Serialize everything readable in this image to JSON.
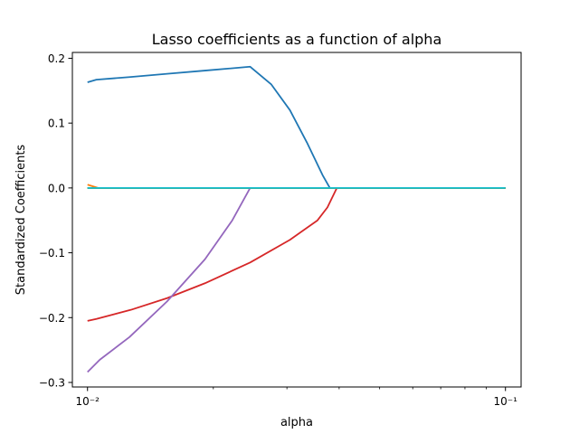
{
  "chart_data": {
    "type": "line",
    "title": "Lasso coefficients as a function of alpha",
    "xlabel": "alpha",
    "ylabel": "Standardized Coefficients",
    "xscale": "log",
    "xlim": [
      0.0092,
      0.109
    ],
    "ylim": [
      -0.307,
      0.209
    ],
    "grid": false,
    "legend": "none",
    "x_ticks": [
      {
        "value": 0.01,
        "label": "10⁻²"
      },
      {
        "value": 0.1,
        "label": "10⁻¹"
      }
    ],
    "y_ticks": [
      {
        "value": 0.2,
        "label": "0.2"
      },
      {
        "value": 0.1,
        "label": "0.1"
      },
      {
        "value": 0.0,
        "label": "0.0"
      },
      {
        "value": -0.1,
        "label": "−0.1"
      },
      {
        "value": -0.2,
        "label": "−0.2"
      },
      {
        "value": -0.3,
        "label": "−0.3"
      }
    ],
    "series": [
      {
        "color": "#1f77b4",
        "points": [
          [
            0.01,
            0.163
          ],
          [
            0.0105,
            0.167
          ],
          [
            0.0126,
            0.171
          ],
          [
            0.0155,
            0.176
          ],
          [
            0.0191,
            0.181
          ],
          [
            0.0245,
            0.187
          ],
          [
            0.0275,
            0.16
          ],
          [
            0.0305,
            0.12
          ],
          [
            0.0335,
            0.07
          ],
          [
            0.0365,
            0.02
          ],
          [
            0.038,
            0.0
          ],
          [
            0.1,
            0.0
          ]
        ]
      },
      {
        "color": "#ff7f0e",
        "points": [
          [
            0.01,
            0.005
          ],
          [
            0.0106,
            0.0
          ],
          [
            0.1,
            0.0
          ]
        ]
      },
      {
        "color": "#d62728",
        "points": [
          [
            0.01,
            -0.205
          ],
          [
            0.0105,
            -0.202
          ],
          [
            0.0127,
            -0.188
          ],
          [
            0.0155,
            -0.17
          ],
          [
            0.0191,
            -0.147
          ],
          [
            0.0245,
            -0.115
          ],
          [
            0.0305,
            -0.08
          ],
          [
            0.0355,
            -0.05
          ],
          [
            0.0375,
            -0.03
          ],
          [
            0.0395,
            0.0
          ],
          [
            0.1,
            0.0
          ]
        ]
      },
      {
        "color": "#9467bd",
        "points": [
          [
            0.01,
            -0.284
          ],
          [
            0.0107,
            -0.265
          ],
          [
            0.0126,
            -0.23
          ],
          [
            0.0155,
            -0.175
          ],
          [
            0.0191,
            -0.11
          ],
          [
            0.0222,
            -0.05
          ],
          [
            0.0245,
            0.0
          ],
          [
            0.1,
            0.0
          ]
        ]
      },
      {
        "color": "#8c564b",
        "points": [
          [
            0.01,
            0.0
          ],
          [
            0.1,
            0.0
          ]
        ]
      },
      {
        "color": "#e377c2",
        "points": [
          [
            0.01,
            0.0
          ],
          [
            0.1,
            0.0
          ]
        ]
      },
      {
        "color": "#7f7f7f",
        "points": [
          [
            0.01,
            0.0
          ],
          [
            0.1,
            0.0
          ]
        ]
      },
      {
        "color": "#bcbd22",
        "points": [
          [
            0.01,
            0.0
          ],
          [
            0.1,
            0.0
          ]
        ]
      },
      {
        "color": "#2ca02c",
        "points": [
          [
            0.01,
            0.0
          ],
          [
            0.1,
            0.0
          ]
        ]
      },
      {
        "color": "#17becf",
        "points": [
          [
            0.01,
            0.0
          ],
          [
            0.1,
            0.0
          ]
        ]
      }
    ]
  }
}
